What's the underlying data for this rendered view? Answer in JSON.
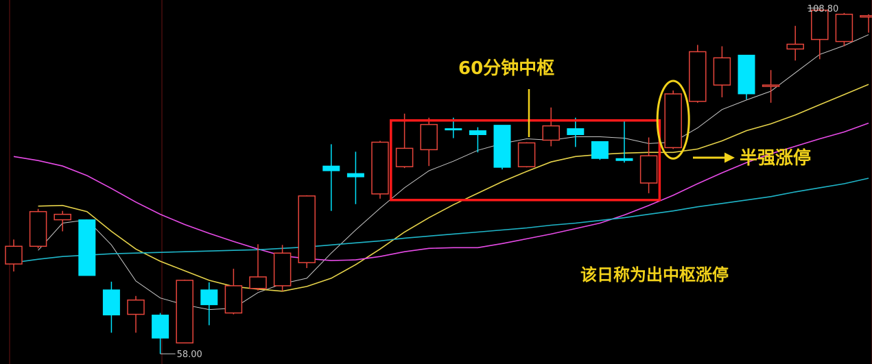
{
  "chart_data": {
    "type": "candlestick",
    "price_range": [
      56.5,
      110
    ],
    "colors": {
      "up": "#e8463c",
      "down": "#00e5ff",
      "ma_white": "#c8c8c8",
      "ma_yellow": "#e6d34a",
      "ma_magenta": "#e84be8",
      "ma_cyan": "#1fb6c9",
      "highlight_box": "#ff1a1a",
      "highlight_ellipse": "#f2d21b",
      "annotation_text": "#f2d21b",
      "guide_line": "#8b1a1a"
    },
    "extreme_labels": {
      "high": {
        "text": "108.80",
        "value": 108.8
      },
      "low": {
        "text": "58.00",
        "value": 58.0
      }
    },
    "candles": [
      {
        "o": 71.2,
        "c": 73.8,
        "h": 74.8,
        "l": 70.1
      },
      {
        "o": 73.8,
        "c": 78.9,
        "h": 79.3,
        "l": 73.5
      },
      {
        "o": 77.7,
        "c": 78.5,
        "h": 79.0,
        "l": 76.0
      },
      {
        "o": 77.7,
        "c": 69.5,
        "h": 77.7,
        "l": 69.5
      },
      {
        "o": 67.4,
        "c": 63.7,
        "h": 68.6,
        "l": 61.1
      },
      {
        "o": 63.8,
        "c": 65.9,
        "h": 66.5,
        "l": 61.1
      },
      {
        "o": 63.7,
        "c": 60.3,
        "h": 64.0,
        "l": 58.0
      },
      {
        "o": 59.6,
        "c": 68.8,
        "h": 68.9,
        "l": 59.6
      },
      {
        "o": 67.4,
        "c": 65.2,
        "h": 68.5,
        "l": 62.2
      },
      {
        "o": 64.0,
        "c": 68.0,
        "h": 70.5,
        "l": 63.8
      },
      {
        "o": 67.6,
        "c": 69.3,
        "h": 74.1,
        "l": 67.3
      },
      {
        "o": 68.0,
        "c": 72.8,
        "h": 74.0,
        "l": 67.2
      },
      {
        "o": 71.4,
        "c": 81.2,
        "h": 81.3,
        "l": 70.6
      },
      {
        "o": 85.6,
        "c": 84.9,
        "h": 88.8,
        "l": 79.0
      },
      {
        "o": 84.5,
        "c": 84.0,
        "h": 87.7,
        "l": 80.0
      },
      {
        "o": 81.5,
        "c": 89.1,
        "h": 89.3,
        "l": 80.8
      },
      {
        "o": 85.5,
        "c": 88.2,
        "h": 93.3,
        "l": 85.3
      },
      {
        "o": 88.0,
        "c": 91.7,
        "h": 92.7,
        "l": 85.6
      },
      {
        "o": 91.1,
        "c": 91.0,
        "h": 92.7,
        "l": 89.7
      },
      {
        "o": 90.8,
        "c": 90.2,
        "h": 91.3,
        "l": 87.6
      },
      {
        "o": 91.6,
        "c": 85.4,
        "h": 91.6,
        "l": 85.1
      },
      {
        "o": 85.5,
        "c": 89.0,
        "h": 89.1,
        "l": 85.4
      },
      {
        "o": 89.4,
        "c": 91.5,
        "h": 94.2,
        "l": 88.5
      },
      {
        "o": 91.1,
        "c": 90.2,
        "h": 92.7,
        "l": 88.4
      },
      {
        "o": 89.2,
        "c": 86.7,
        "h": 89.2,
        "l": 86.5
      },
      {
        "o": 86.7,
        "c": 86.4,
        "h": 92.4,
        "l": 86.1
      },
      {
        "o": 83.1,
        "c": 87.1,
        "h": 89.8,
        "l": 81.6
      },
      {
        "o": 88.3,
        "c": 96.2,
        "h": 96.7,
        "l": 88.1
      },
      {
        "o": 95.1,
        "c": 102.4,
        "h": 103.4,
        "l": 94.9
      },
      {
        "o": 97.5,
        "c": 101.5,
        "h": 103.2,
        "l": 95.7
      },
      {
        "o": 101.9,
        "c": 96.2,
        "h": 101.9,
        "l": 95.4
      },
      {
        "o": 97.5,
        "c": 97.5,
        "h": 99.7,
        "l": 94.9
      },
      {
        "o": 102.8,
        "c": 103.5,
        "h": 106.2,
        "l": 101.1
      },
      {
        "o": 104.2,
        "c": 108.5,
        "h": 108.8,
        "l": 101.3
      },
      {
        "o": 103.9,
        "c": 107.9,
        "h": 108.1,
        "l": 103.2
      },
      {
        "o": 107.5,
        "c": 107.7,
        "h": 107.9,
        "l": 105.2
      }
    ],
    "moving_averages": [
      {
        "color_key": "ma_white",
        "values": [
          null,
          73.2,
          77.2,
          77.7,
          74.0,
          68.7,
          66.2,
          65.2,
          64.5,
          64.7,
          67.0,
          68.3,
          69.1,
          72.8,
          76.2,
          79.4,
          82.4,
          84.9,
          86.3,
          87.9,
          88.9,
          89.6,
          89.4,
          89.9,
          89.9,
          89.7,
          88.9,
          89.1,
          91.2,
          93.9,
          95.3,
          96.6,
          99.3,
          102.0,
          103.3,
          104.9
        ]
      },
      {
        "color_key": "ma_yellow",
        "values": [
          null,
          79.7,
          79.8,
          78.9,
          76.0,
          73.4,
          71.6,
          70.2,
          68.8,
          67.9,
          67.5,
          67.2,
          67.9,
          69.1,
          71.1,
          73.4,
          75.9,
          78.0,
          79.9,
          81.6,
          83.3,
          84.8,
          86.2,
          87.0,
          87.3,
          87.5,
          87.6,
          87.6,
          88.1,
          89.3,
          90.8,
          91.8,
          93.1,
          94.6,
          96.1,
          97.6
        ]
      },
      {
        "color_key": "ma_magenta",
        "values": [
          87.0,
          86.4,
          85.6,
          84.2,
          82.3,
          80.3,
          78.5,
          77.0,
          75.7,
          74.5,
          73.4,
          72.4,
          72.0,
          71.7,
          71.8,
          72.3,
          73.0,
          73.5,
          73.6,
          73.6,
          74.2,
          74.9,
          75.6,
          76.4,
          77.2,
          78.4,
          79.8,
          81.3,
          83.0,
          84.6,
          86.1,
          87.4,
          88.5,
          89.6,
          90.6,
          91.9
        ]
      },
      {
        "color_key": "ma_cyan",
        "values": [
          71.4,
          71.9,
          72.3,
          72.5,
          72.7,
          72.8,
          72.9,
          73.0,
          73.1,
          73.2,
          73.3,
          73.5,
          73.7,
          74.0,
          74.3,
          74.6,
          75.0,
          75.3,
          75.6,
          75.9,
          76.2,
          76.5,
          76.9,
          77.2,
          77.6,
          78.0,
          78.5,
          79.0,
          79.6,
          80.1,
          80.6,
          81.1,
          81.8,
          82.4,
          83.0,
          83.8
        ]
      }
    ],
    "highlight_box": {
      "from_index": 16,
      "to_index": 26,
      "top": 92.3,
      "bottom": 80.6
    },
    "highlight_candle_index": 27,
    "annotations": [
      {
        "text": "60分钟中枢"
      },
      {
        "text": "半强涨停"
      },
      {
        "text": "该日称为出中枢涨停"
      }
    ]
  }
}
